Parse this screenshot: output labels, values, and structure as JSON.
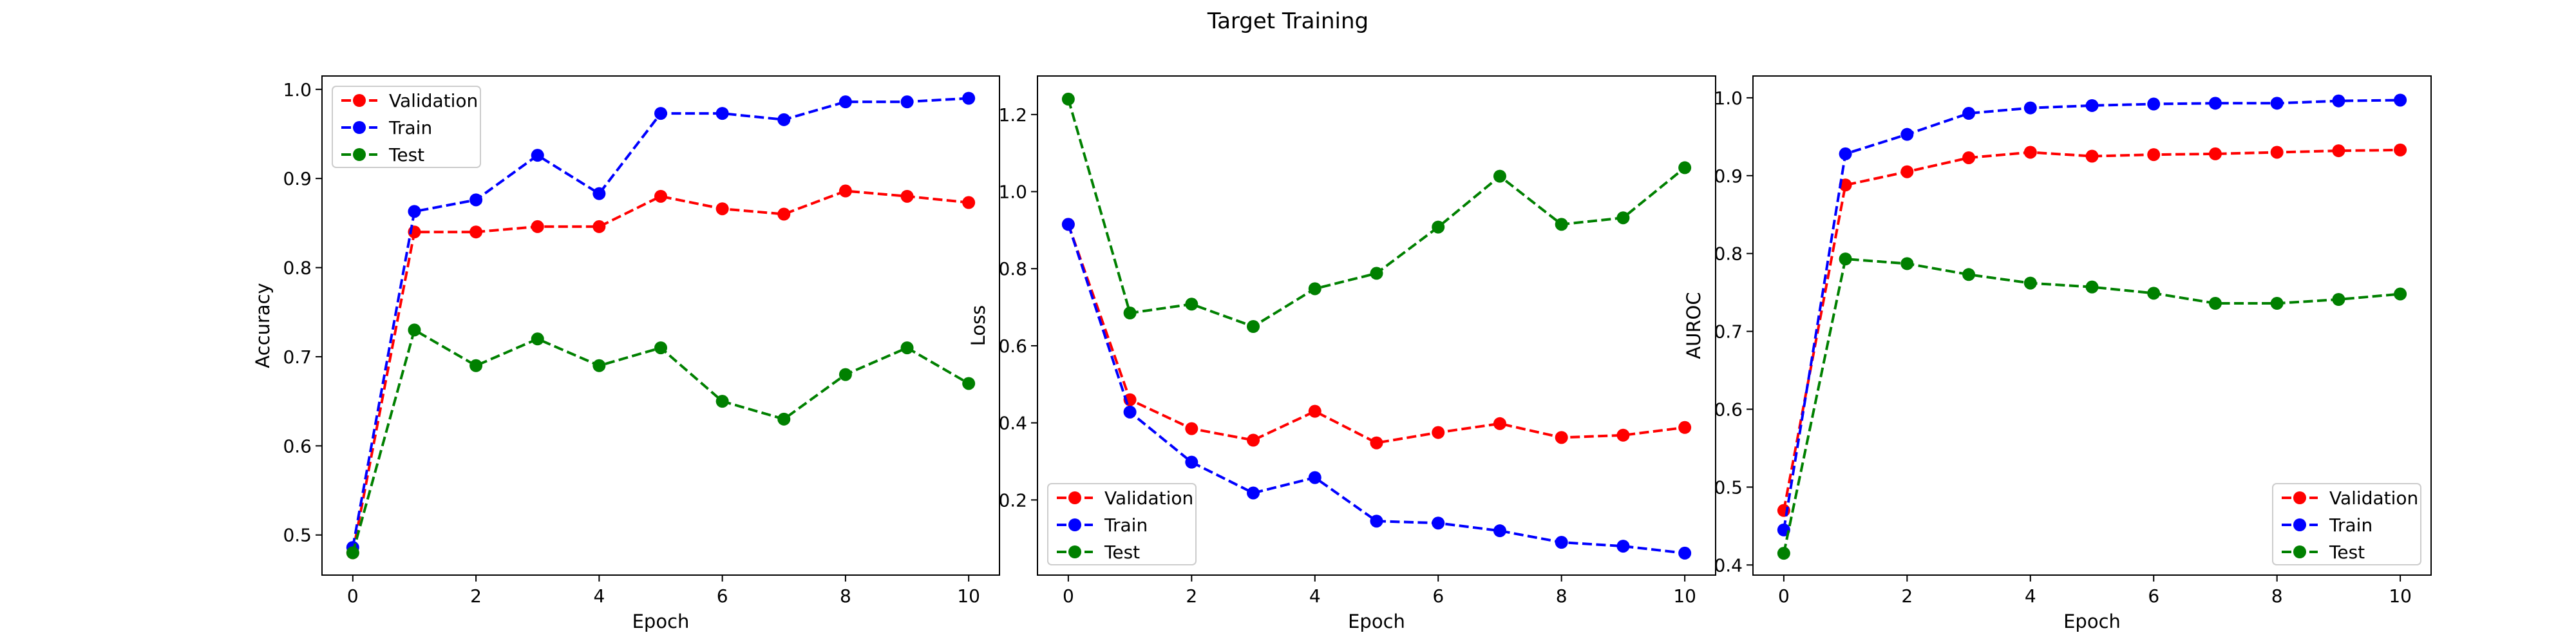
{
  "title": "Target Training",
  "chart_data": [
    {
      "type": "line",
      "xlabel": "Epoch",
      "ylabel": "Accuracy",
      "x": [
        0,
        1,
        2,
        3,
        4,
        5,
        6,
        7,
        8,
        9,
        10
      ],
      "xticks": [
        "0",
        "2",
        "4",
        "6",
        "8",
        "10"
      ],
      "yticks": [
        "0.5",
        "0.6",
        "0.7",
        "0.8",
        "0.9",
        "1.0"
      ],
      "xlim": [
        -0.5,
        10.5
      ],
      "ylim": [
        0.455,
        1.015
      ],
      "legend": "top-left",
      "series": [
        {
          "name": "Validation",
          "color": "#ff0000",
          "values": [
            0.48,
            0.84,
            0.84,
            0.846,
            0.846,
            0.88,
            0.866,
            0.86,
            0.886,
            0.88,
            0.873
          ]
        },
        {
          "name": "Train",
          "color": "#0000ff",
          "values": [
            0.486,
            0.863,
            0.876,
            0.926,
            0.883,
            0.973,
            0.973,
            0.966,
            0.986,
            0.986,
            0.99
          ]
        },
        {
          "name": "Test",
          "color": "#008000",
          "values": [
            0.48,
            0.73,
            0.69,
            0.72,
            0.69,
            0.71,
            0.65,
            0.63,
            0.68,
            0.71,
            0.67
          ]
        }
      ]
    },
    {
      "type": "line",
      "xlabel": "Epoch",
      "ylabel": "Loss",
      "x": [
        0,
        1,
        2,
        3,
        4,
        5,
        6,
        7,
        8,
        9,
        10
      ],
      "xticks": [
        "0",
        "2",
        "4",
        "6",
        "8",
        "10"
      ],
      "yticks": [
        "0.2",
        "0.4",
        "0.6",
        "0.8",
        "1.0",
        "1.2"
      ],
      "xlim": [
        -0.5,
        10.5
      ],
      "ylim": [
        0.005,
        1.3
      ],
      "legend": "bottom-left",
      "series": [
        {
          "name": "Validation",
          "color": "#ff0000",
          "values": [
            0.915,
            0.46,
            0.385,
            0.355,
            0.43,
            0.348,
            0.375,
            0.398,
            0.362,
            0.368,
            0.388
          ]
        },
        {
          "name": "Train",
          "color": "#0000ff",
          "values": [
            0.915,
            0.428,
            0.298,
            0.218,
            0.258,
            0.145,
            0.14,
            0.12,
            0.09,
            0.08,
            0.062
          ]
        },
        {
          "name": "Test",
          "color": "#008000",
          "values": [
            1.24,
            0.685,
            0.708,
            0.65,
            0.748,
            0.788,
            0.908,
            1.04,
            0.915,
            0.932,
            1.062
          ]
        }
      ]
    },
    {
      "type": "line",
      "xlabel": "Epoch",
      "ylabel": "AUROC",
      "x": [
        0,
        1,
        2,
        3,
        4,
        5,
        6,
        7,
        8,
        9,
        10
      ],
      "xticks": [
        "0",
        "2",
        "4",
        "6",
        "8",
        "10"
      ],
      "yticks": [
        "0.4",
        "0.5",
        "0.6",
        "0.7",
        "0.8",
        "0.9",
        "1.0"
      ],
      "xlim": [
        -0.5,
        10.5
      ],
      "ylim": [
        0.387,
        1.028
      ],
      "legend": "bottom-right",
      "series": [
        {
          "name": "Validation",
          "color": "#ff0000",
          "values": [
            0.47,
            0.888,
            0.905,
            0.923,
            0.93,
            0.925,
            0.927,
            0.928,
            0.93,
            0.932,
            0.933
          ]
        },
        {
          "name": "Train",
          "color": "#0000ff",
          "values": [
            0.445,
            0.928,
            0.953,
            0.98,
            0.987,
            0.99,
            0.992,
            0.993,
            0.993,
            0.996,
            0.997
          ]
        },
        {
          "name": "Test",
          "color": "#008000",
          "values": [
            0.415,
            0.793,
            0.787,
            0.773,
            0.762,
            0.757,
            0.749,
            0.736,
            0.736,
            0.741,
            0.748
          ]
        }
      ]
    }
  ]
}
